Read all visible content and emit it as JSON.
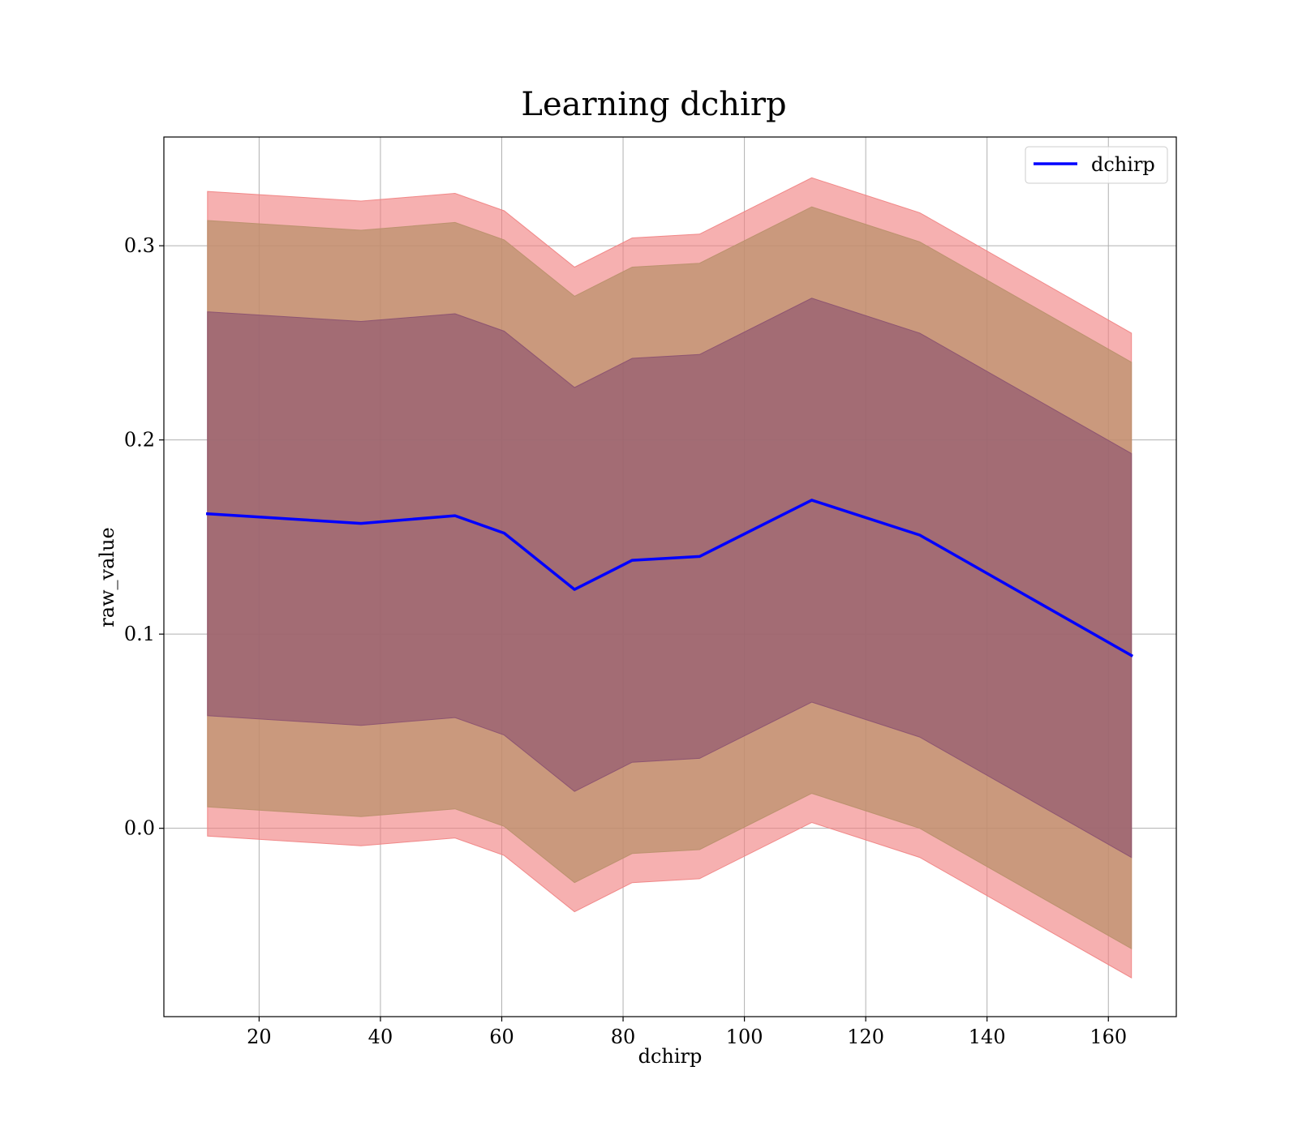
{
  "chart_data": {
    "type": "line",
    "title": "Learning dchirp",
    "xlabel": "dchirp",
    "ylabel": "raw_value",
    "xlim": [
      4.3,
      171.2
    ],
    "ylim": [
      -0.097,
      0.356
    ],
    "grid": true,
    "legend_position": "top-right",
    "x_ticks": [
      20,
      40,
      60,
      80,
      100,
      120,
      140,
      160
    ],
    "x_tick_labels": [
      "20",
      "40",
      "60",
      "80",
      "100",
      "120",
      "140",
      "160"
    ],
    "y_ticks": [
      0.0,
      0.1,
      0.2,
      0.3
    ],
    "y_tick_labels": [
      "0.0",
      "0.1",
      "0.2",
      "0.3"
    ],
    "x": [
      11.5,
      36.8,
      52.3,
      60.4,
      72.0,
      81.5,
      92.6,
      111.1,
      128.9,
      163.8
    ],
    "series": [
      {
        "name": "dchirp",
        "color": "#0000ff",
        "values": [
          0.162,
          0.157,
          0.161,
          0.152,
          0.123,
          0.138,
          0.14,
          0.169,
          0.151,
          0.089
        ]
      }
    ],
    "bands": [
      {
        "color": "#f08080",
        "opacity": 0.62,
        "lower": [
          -0.004,
          -0.009,
          -0.005,
          -0.014,
          -0.043,
          -0.028,
          -0.026,
          0.003,
          -0.015,
          -0.077
        ],
        "upper": [
          0.328,
          0.323,
          0.327,
          0.318,
          0.289,
          0.304,
          0.306,
          0.335,
          0.317,
          0.255
        ]
      },
      {
        "color": "#b8906a",
        "opacity": 0.72,
        "lower": [
          0.011,
          0.006,
          0.01,
          0.001,
          -0.028,
          -0.013,
          -0.011,
          0.018,
          0.0,
          -0.062
        ],
        "upper": [
          0.313,
          0.308,
          0.312,
          0.303,
          0.274,
          0.289,
          0.291,
          0.32,
          0.302,
          0.24
        ]
      },
      {
        "color": "#8a5070",
        "opacity": 0.62,
        "lower": [
          0.058,
          0.053,
          0.057,
          0.048,
          0.019,
          0.034,
          0.036,
          0.065,
          0.047,
          -0.015
        ],
        "upper": [
          0.266,
          0.261,
          0.265,
          0.256,
          0.227,
          0.242,
          0.244,
          0.273,
          0.255,
          0.193
        ]
      }
    ]
  }
}
